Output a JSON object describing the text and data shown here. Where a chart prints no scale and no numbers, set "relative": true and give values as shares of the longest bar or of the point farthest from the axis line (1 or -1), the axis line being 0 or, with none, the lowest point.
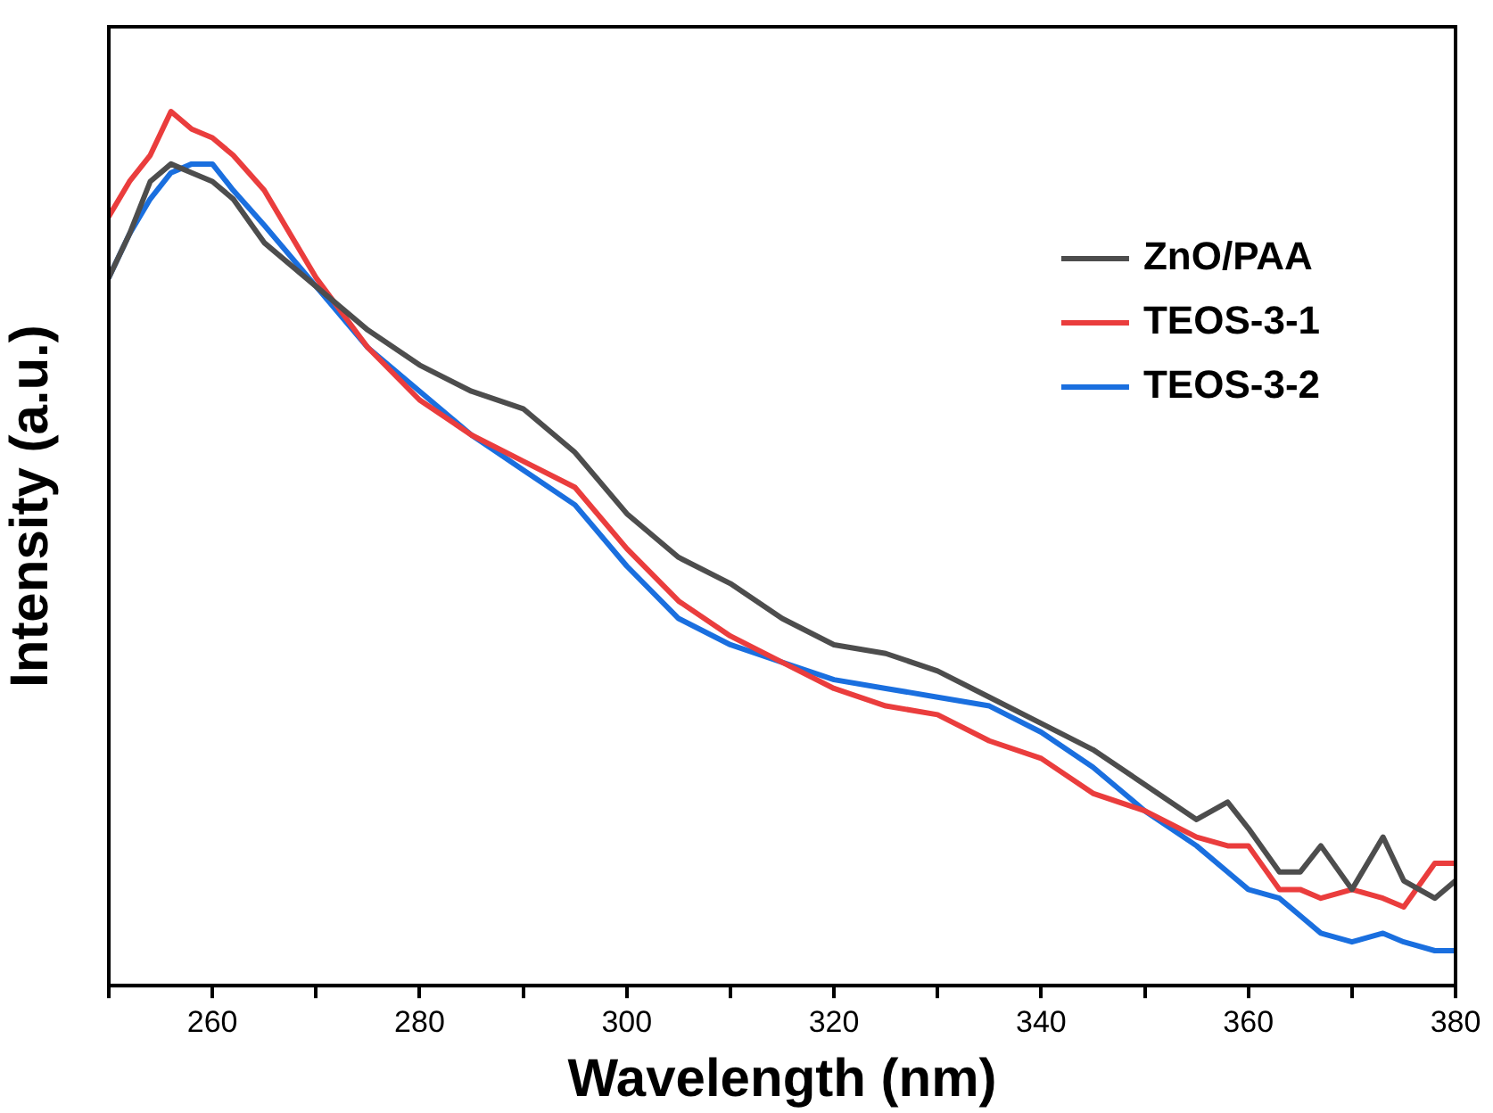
{
  "chart_data": {
    "type": "line",
    "xlabel": "Wavelength (nm)",
    "ylabel": "Intensity (a.u.)",
    "relative": true,
    "legend": "top right",
    "marker": "none",
    "line_style": "solid",
    "grid": false,
    "x": [
      250,
      252,
      254,
      256,
      258,
      260,
      262,
      265,
      270,
      275,
      280,
      285,
      290,
      295,
      300,
      305,
      310,
      315,
      320,
      325,
      330,
      335,
      340,
      345,
      350,
      355,
      358,
      360,
      363,
      365,
      367,
      370,
      373,
      375,
      378,
      380
    ],
    "xlim": [
      250,
      380
    ],
    "xticks": [
      {
        "value": 250,
        "label": null
      },
      260,
      {
        "value": 270,
        "label": null
      },
      280,
      {
        "value": 290,
        "label": null
      },
      300,
      {
        "value": 310,
        "label": null
      },
      320,
      {
        "value": 330,
        "label": null
      },
      340,
      {
        "value": 350,
        "label": null
      },
      360,
      {
        "value": 370,
        "label": null
      },
      380
    ],
    "series": [
      {
        "name": "ZnO/PAA",
        "color": "#4d4d4d",
        "values": [
          0.81,
          0.86,
          0.92,
          0.94,
          0.93,
          0.92,
          0.9,
          0.85,
          0.8,
          0.75,
          0.71,
          0.68,
          0.66,
          0.61,
          0.54,
          0.49,
          0.46,
          0.42,
          0.39,
          0.38,
          0.36,
          0.33,
          0.3,
          0.27,
          0.23,
          0.19,
          0.21,
          0.18,
          0.13,
          0.13,
          0.16,
          0.11,
          0.17,
          0.12,
          0.1,
          0.12
        ]
      },
      {
        "name": "TEOS-3-1",
        "color": "#ea3d3d",
        "values": [
          0.88,
          0.92,
          0.95,
          1,
          0.98,
          0.97,
          0.95,
          0.91,
          0.81,
          0.73,
          0.67,
          0.63,
          0.6,
          0.57,
          0.5,
          0.44,
          0.4,
          0.37,
          0.34,
          0.32,
          0.31,
          0.28,
          0.26,
          0.22,
          0.2,
          0.17,
          0.16,
          0.16,
          0.11,
          0.11,
          0.1,
          0.11,
          0.1,
          0.09,
          0.14,
          0.14
        ]
      },
      {
        "name": "TEOS-3-2",
        "color": "#1a6fdf",
        "values": [
          0.81,
          0.86,
          0.9,
          0.93,
          0.94,
          0.94,
          0.91,
          0.87,
          0.8,
          0.73,
          0.68,
          0.63,
          0.59,
          0.55,
          0.48,
          0.42,
          0.39,
          0.37,
          0.35,
          0.34,
          0.33,
          0.32,
          0.29,
          0.25,
          0.2,
          0.16,
          0.13,
          0.11,
          0.1,
          0.08,
          0.06,
          0.05,
          0.06,
          0.05,
          0.04,
          0.04
        ]
      }
    ]
  }
}
